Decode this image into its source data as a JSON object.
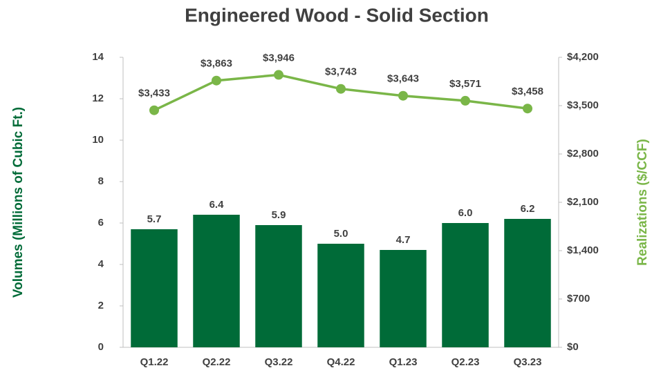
{
  "chart_data": {
    "type": "bar",
    "title": "Engineered Wood - Solid Section",
    "y_label": "Volumes (Millions of Cubic Ft.)",
    "y2_label": "Realizations ($/CCF)",
    "categories": [
      "Q1.22",
      "Q2.22",
      "Q3.22",
      "Q4.22",
      "Q1.23",
      "Q2.23",
      "Q3.23"
    ],
    "series": [
      {
        "type": "bar",
        "color": "#006b38",
        "values": [
          5.7,
          6.4,
          5.9,
          5.0,
          4.7,
          6.0,
          6.2
        ],
        "value_labels": [
          "5.7",
          "6.4",
          "5.9",
          "5.0",
          "4.7",
          "6.0",
          "6.2"
        ]
      },
      {
        "type": "line",
        "axis": "y2",
        "color": "#7ab648",
        "values": [
          3433,
          3863,
          3946,
          3743,
          3643,
          3571,
          3458
        ],
        "value_labels": [
          "$3,433",
          "$3,863",
          "$3,946",
          "$3,743",
          "$3,643",
          "$3,571",
          "$3,458"
        ]
      }
    ],
    "ylim": [
      0,
      14
    ],
    "yticks": [
      0,
      2,
      4,
      6,
      8,
      10,
      12,
      14
    ],
    "y2lim": [
      0,
      4200
    ],
    "y2ticks": [
      {
        "value": 0,
        "label": "$0"
      },
      {
        "value": 700,
        "label": "$700"
      },
      {
        "value": 1400,
        "label": "$1,400"
      },
      {
        "value": 2100,
        "label": "$2,100"
      },
      {
        "value": 2800,
        "label": "$2,800"
      },
      {
        "value": 3500,
        "label": "$3,500"
      },
      {
        "value": 4200,
        "label": "$4,200"
      }
    ]
  }
}
